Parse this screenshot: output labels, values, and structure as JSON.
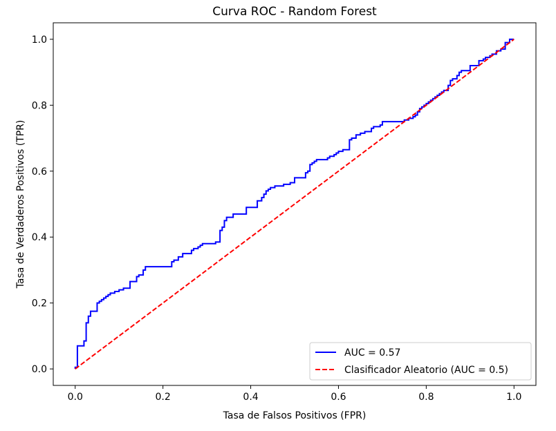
{
  "chart_data": {
    "type": "line",
    "title": "Curva ROC - Random Forest",
    "xlabel": "Tasa de Falsos Positivos (FPR)",
    "ylabel": "Tasa de Verdaderos Positivos (TPR)",
    "xlim": [
      -0.05,
      1.05
    ],
    "ylim": [
      -0.05,
      1.05
    ],
    "xticks": [
      0.0,
      0.2,
      0.4,
      0.6,
      0.8,
      1.0
    ],
    "xtick_labels": [
      "0.0",
      "0.2",
      "0.4",
      "0.6",
      "0.8",
      "1.0"
    ],
    "yticks": [
      0.0,
      0.2,
      0.4,
      0.6,
      0.8,
      1.0
    ],
    "ytick_labels": [
      "0.0",
      "0.2",
      "0.4",
      "0.6",
      "0.8",
      "1.0"
    ],
    "grid": false,
    "legend_position": "lower right",
    "series": [
      {
        "name": "AUC = 0.57",
        "color": "#0000ff",
        "style": "solid",
        "step": true,
        "x": [
          0.0,
          0.0,
          0.005,
          0.005,
          0.01,
          0.015,
          0.02,
          0.02,
          0.025,
          0.025,
          0.03,
          0.03,
          0.035,
          0.035,
          0.04,
          0.04,
          0.05,
          0.05,
          0.055,
          0.055,
          0.06,
          0.06,
          0.065,
          0.065,
          0.07,
          0.07,
          0.075,
          0.075,
          0.08,
          0.08,
          0.09,
          0.09,
          0.1,
          0.1,
          0.11,
          0.11,
          0.125,
          0.125,
          0.14,
          0.14,
          0.145,
          0.145,
          0.155,
          0.155,
          0.16,
          0.16,
          0.22,
          0.22,
          0.225,
          0.225,
          0.235,
          0.235,
          0.245,
          0.245,
          0.265,
          0.265,
          0.27,
          0.27,
          0.28,
          0.28,
          0.285,
          0.285,
          0.29,
          0.29,
          0.32,
          0.32,
          0.33,
          0.33,
          0.335,
          0.335,
          0.34,
          0.34,
          0.345,
          0.345,
          0.36,
          0.36,
          0.39,
          0.39,
          0.4,
          0.4,
          0.415,
          0.415,
          0.425,
          0.425,
          0.43,
          0.43,
          0.435,
          0.435,
          0.44,
          0.44,
          0.445,
          0.445,
          0.455,
          0.455,
          0.475,
          0.475,
          0.49,
          0.49,
          0.5,
          0.5,
          0.525,
          0.525,
          0.53,
          0.53,
          0.535,
          0.535,
          0.54,
          0.54,
          0.545,
          0.545,
          0.55,
          0.55,
          0.575,
          0.575,
          0.58,
          0.58,
          0.59,
          0.59,
          0.595,
          0.595,
          0.6,
          0.6,
          0.61,
          0.61,
          0.625,
          0.625,
          0.63,
          0.63,
          0.64,
          0.64,
          0.65,
          0.65,
          0.66,
          0.66,
          0.675,
          0.675,
          0.68,
          0.68,
          0.695,
          0.695,
          0.7,
          0.7,
          0.74,
          0.74,
          0.75,
          0.75,
          0.76,
          0.76,
          0.77,
          0.77,
          0.775,
          0.775,
          0.78,
          0.78,
          0.785,
          0.785,
          0.79,
          0.79,
          0.795,
          0.795,
          0.8,
          0.8,
          0.805,
          0.805,
          0.81,
          0.81,
          0.815,
          0.815,
          0.82,
          0.82,
          0.825,
          0.825,
          0.83,
          0.83,
          0.835,
          0.835,
          0.84,
          0.84,
          0.85,
          0.85,
          0.855,
          0.855,
          0.86,
          0.86,
          0.87,
          0.87,
          0.875,
          0.875,
          0.88,
          0.88,
          0.9,
          0.9,
          0.92,
          0.92,
          0.93,
          0.93,
          0.935,
          0.935,
          0.945,
          0.945,
          0.95,
          0.95,
          0.96,
          0.96,
          0.97,
          0.97,
          0.98,
          0.98,
          0.99,
          0.99,
          1.0
        ],
        "y": [
          0.0,
          0.005,
          0.005,
          0.07,
          0.07,
          0.07,
          0.07,
          0.085,
          0.085,
          0.14,
          0.14,
          0.16,
          0.16,
          0.175,
          0.175,
          0.175,
          0.175,
          0.2,
          0.2,
          0.205,
          0.205,
          0.21,
          0.21,
          0.215,
          0.215,
          0.22,
          0.22,
          0.225,
          0.225,
          0.23,
          0.23,
          0.235,
          0.235,
          0.24,
          0.24,
          0.245,
          0.245,
          0.265,
          0.265,
          0.28,
          0.28,
          0.285,
          0.285,
          0.3,
          0.3,
          0.31,
          0.31,
          0.325,
          0.325,
          0.33,
          0.33,
          0.34,
          0.34,
          0.35,
          0.35,
          0.36,
          0.36,
          0.365,
          0.365,
          0.37,
          0.37,
          0.375,
          0.375,
          0.38,
          0.38,
          0.385,
          0.385,
          0.42,
          0.42,
          0.43,
          0.43,
          0.45,
          0.45,
          0.46,
          0.46,
          0.47,
          0.47,
          0.49,
          0.49,
          0.49,
          0.49,
          0.51,
          0.51,
          0.52,
          0.52,
          0.53,
          0.53,
          0.54,
          0.54,
          0.545,
          0.545,
          0.55,
          0.55,
          0.555,
          0.555,
          0.56,
          0.56,
          0.565,
          0.565,
          0.58,
          0.58,
          0.595,
          0.595,
          0.6,
          0.6,
          0.62,
          0.62,
          0.625,
          0.625,
          0.63,
          0.63,
          0.635,
          0.635,
          0.64,
          0.64,
          0.645,
          0.645,
          0.65,
          0.65,
          0.655,
          0.655,
          0.66,
          0.66,
          0.665,
          0.665,
          0.695,
          0.695,
          0.7,
          0.7,
          0.71,
          0.71,
          0.715,
          0.715,
          0.72,
          0.72,
          0.73,
          0.73,
          0.735,
          0.735,
          0.74,
          0.74,
          0.75,
          0.75,
          0.75,
          0.75,
          0.755,
          0.755,
          0.76,
          0.76,
          0.765,
          0.765,
          0.77,
          0.77,
          0.78,
          0.78,
          0.79,
          0.79,
          0.795,
          0.795,
          0.8,
          0.8,
          0.805,
          0.805,
          0.81,
          0.81,
          0.815,
          0.815,
          0.82,
          0.82,
          0.825,
          0.825,
          0.83,
          0.83,
          0.835,
          0.835,
          0.84,
          0.84,
          0.845,
          0.845,
          0.86,
          0.86,
          0.875,
          0.875,
          0.88,
          0.88,
          0.89,
          0.89,
          0.9,
          0.9,
          0.905,
          0.905,
          0.92,
          0.92,
          0.935,
          0.935,
          0.94,
          0.94,
          0.945,
          0.945,
          0.95,
          0.95,
          0.955,
          0.955,
          0.965,
          0.965,
          0.97,
          0.97,
          0.99,
          0.99,
          1.0,
          1.0
        ]
      },
      {
        "name": "Clasificador Aleatorio (AUC = 0.5)",
        "color": "#ff0000",
        "style": "dashed",
        "x": [
          0.0,
          1.0
        ],
        "y": [
          0.0,
          1.0
        ]
      }
    ]
  }
}
